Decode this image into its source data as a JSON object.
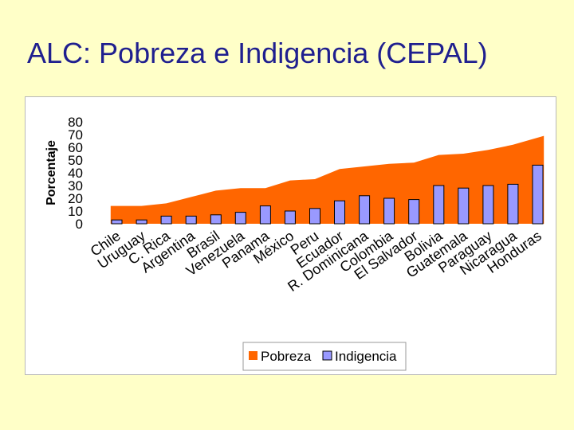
{
  "slide": {
    "title": "ALC: Pobreza e Indigencia (CEPAL)"
  },
  "colors": {
    "background": "#ffffc8",
    "title": "#1f1f8f",
    "pobreza": "#ff6600",
    "indigencia": "#9999ff",
    "bar_stroke": "#000000"
  },
  "chart_data": {
    "type": "area+bar",
    "ylabel": "Porcentaje",
    "ylim": [
      0,
      80
    ],
    "yticks": [
      0,
      10,
      20,
      30,
      40,
      50,
      60,
      70,
      80
    ],
    "grid": false,
    "legend_position": "bottom",
    "categories": [
      "Chile",
      "Uruguay",
      "C. Rica",
      "Argentina",
      "Brasil",
      "Venezuela",
      "Panama",
      "México",
      "Peru",
      "Ecuador",
      "R. Dominicana",
      "Colombia",
      "El Salvador",
      "Bolivia",
      "Guatemala",
      "Paraguay",
      "Nicaragua",
      "Honduras"
    ],
    "series": [
      {
        "name": "Pobreza",
        "type": "area",
        "values": [
          14,
          14,
          16,
          21,
          26,
          28,
          28,
          34,
          35,
          43,
          45,
          47,
          48,
          54,
          55,
          58,
          62,
          69
        ]
      },
      {
        "name": "Indigencia",
        "type": "bar",
        "values": [
          3,
          3,
          6,
          6,
          7,
          9,
          14,
          10,
          12,
          18,
          22,
          20,
          19,
          30,
          28,
          30,
          31,
          46
        ]
      }
    ]
  }
}
